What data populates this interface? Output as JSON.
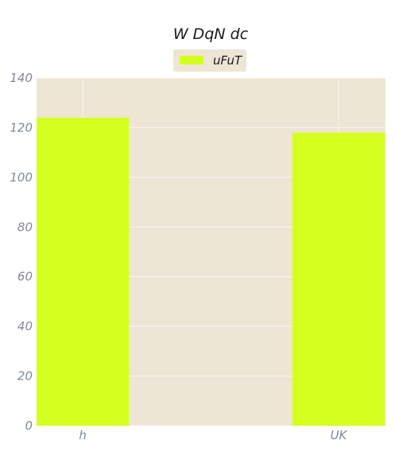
{
  "chart_data": {
    "type": "bar",
    "title": "W DqN dc",
    "xlabel": "",
    "ylabel": "",
    "categories": [
      "h",
      "UK"
    ],
    "series": [
      {
        "name": "uFuT",
        "values": [
          124,
          118
        ]
      }
    ],
    "ylim": [
      0,
      140
    ],
    "yticks": [
      0,
      20,
      40,
      60,
      80,
      100,
      120,
      140
    ],
    "grid": true,
    "legend_position": "top-center",
    "colors": {
      "plot_background": "#ede6d5",
      "grid": "#fbf8f2",
      "bar": "#d5ff1f",
      "tick_text": "#7f8a97",
      "title_text": "#1a1a1a"
    }
  }
}
